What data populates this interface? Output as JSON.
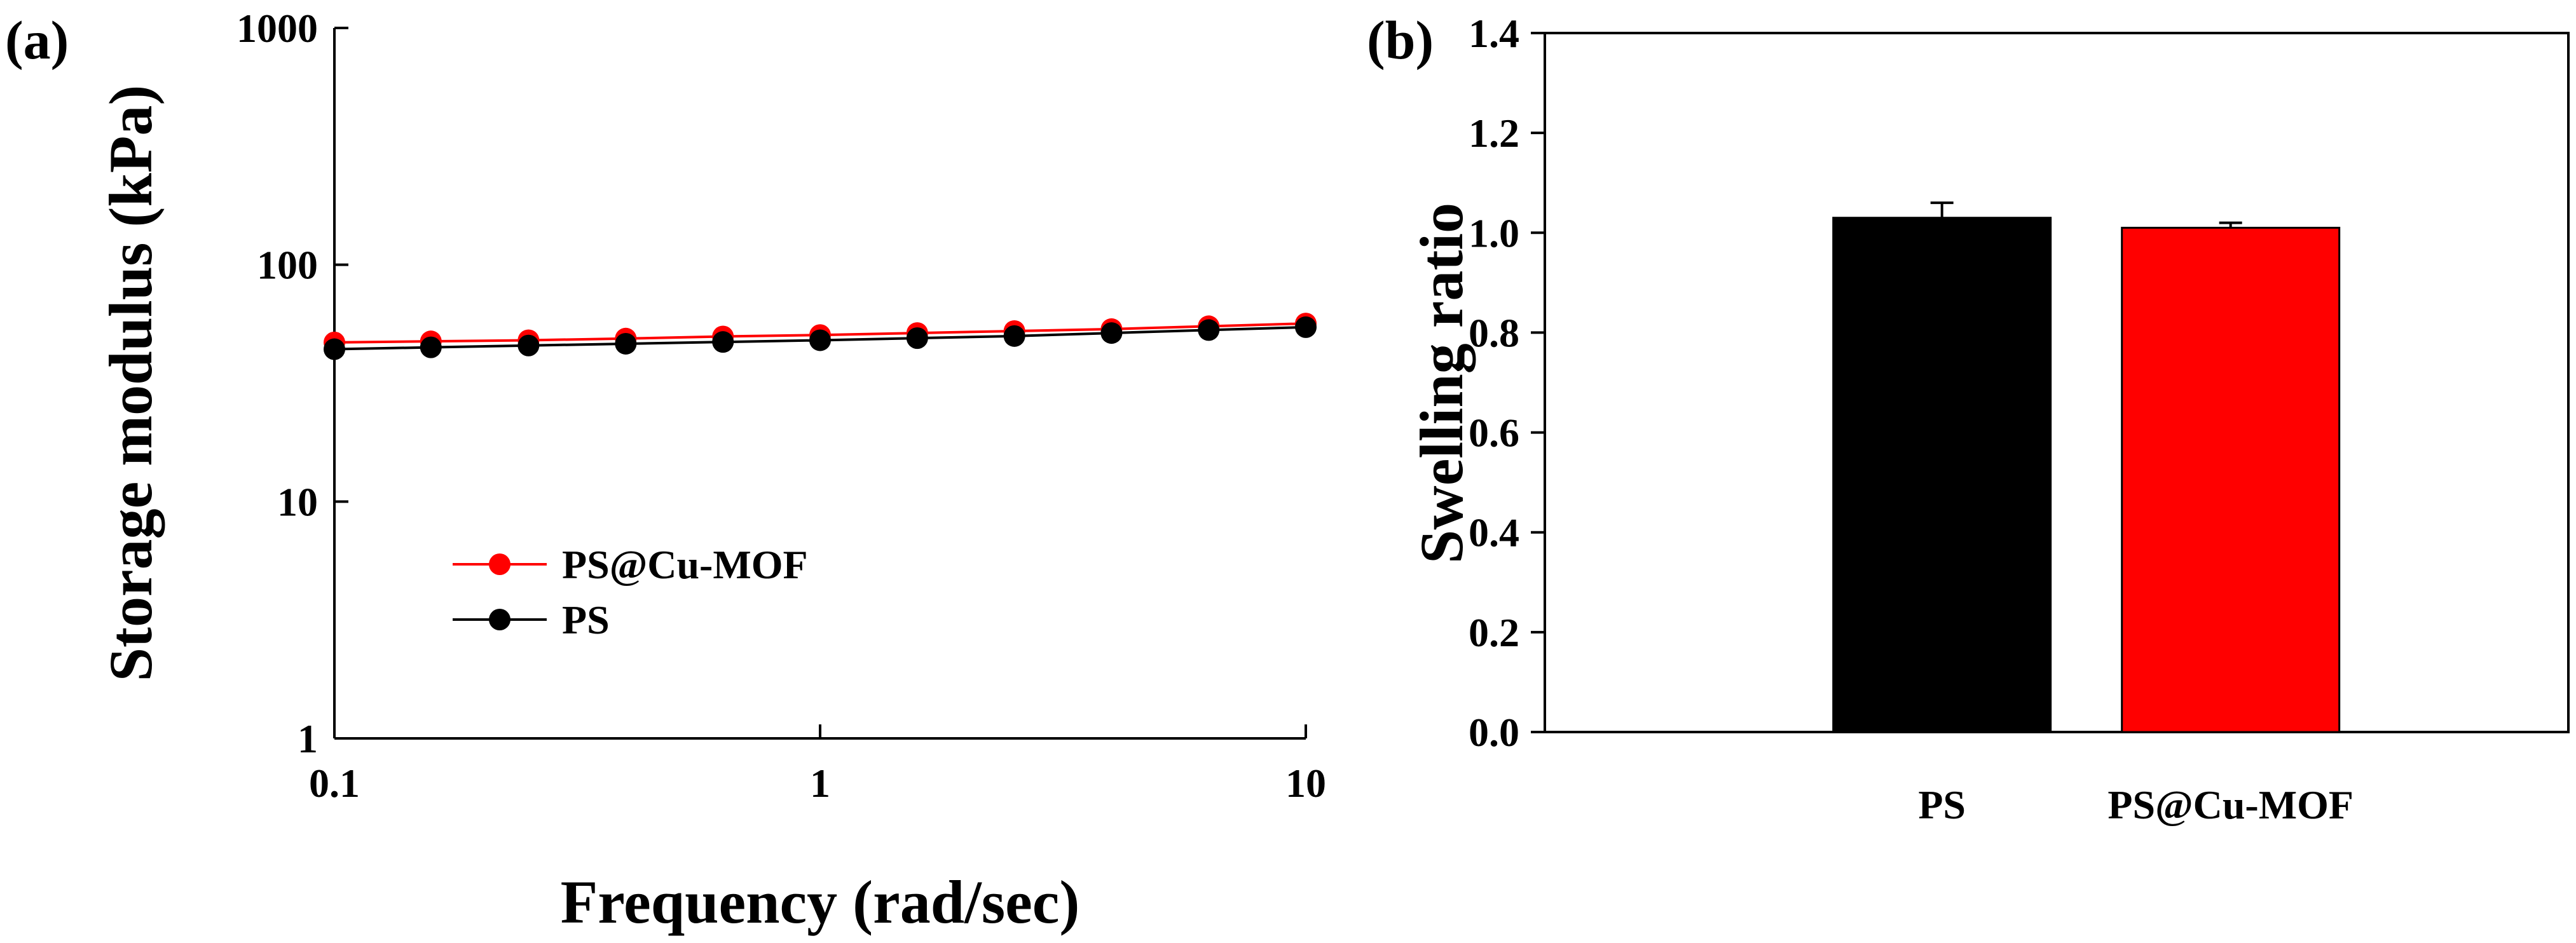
{
  "figure": {
    "panel_a_label": "(a)",
    "panel_b_label": "(b)"
  },
  "chart_data": [
    {
      "type": "line",
      "panel": "(a)",
      "title": "",
      "xlabel": "Frequency (rad/sec)",
      "ylabel": "Storage modulus (kPa)",
      "xscale": "log",
      "yscale": "log",
      "xlim": [
        0.1,
        10
      ],
      "ylim": [
        1,
        1000
      ],
      "x_ticks": [
        0.1,
        1,
        10
      ],
      "x_tick_labels": [
        "0.1",
        "1",
        "10"
      ],
      "y_ticks": [
        1,
        10,
        100,
        1000
      ],
      "y_tick_labels": [
        "1",
        "10",
        "100",
        "1000"
      ],
      "x": [
        0.1,
        0.158,
        0.251,
        0.398,
        0.631,
        1.0,
        1.585,
        2.512,
        3.981,
        6.31,
        10.0
      ],
      "series": [
        {
          "name": "PS@Cu-MOF",
          "color": "#ff0000",
          "values": [
            47,
            47.5,
            48,
            48.8,
            49.8,
            50.5,
            51.5,
            52.5,
            53.5,
            55,
            56.5
          ]
        },
        {
          "name": "PS",
          "color": "#000000",
          "values": [
            44,
            44.8,
            45.6,
            46.4,
            47.2,
            48,
            49,
            50,
            51.5,
            53,
            54.5
          ]
        }
      ],
      "legend": [
        "PS@Cu-MOF",
        "PS"
      ],
      "legend_position": "lower-left",
      "grid": false
    },
    {
      "type": "bar",
      "panel": "(b)",
      "title": "",
      "xlabel": "",
      "ylabel": "Swelling ratio",
      "categories": [
        "PS",
        "PS@Cu-MOF"
      ],
      "values": [
        1.03,
        1.01
      ],
      "errors": [
        0.03,
        0.01
      ],
      "colors": [
        "#000000",
        "#ff0000"
      ],
      "ylim": [
        0,
        1.4
      ],
      "y_ticks": [
        0.0,
        0.2,
        0.4,
        0.6,
        0.8,
        1.0,
        1.2,
        1.4
      ],
      "y_tick_labels": [
        "0.0",
        "0.2",
        "0.4",
        "0.6",
        "0.8",
        "1.0",
        "1.2",
        "1.4"
      ],
      "grid": false
    }
  ]
}
